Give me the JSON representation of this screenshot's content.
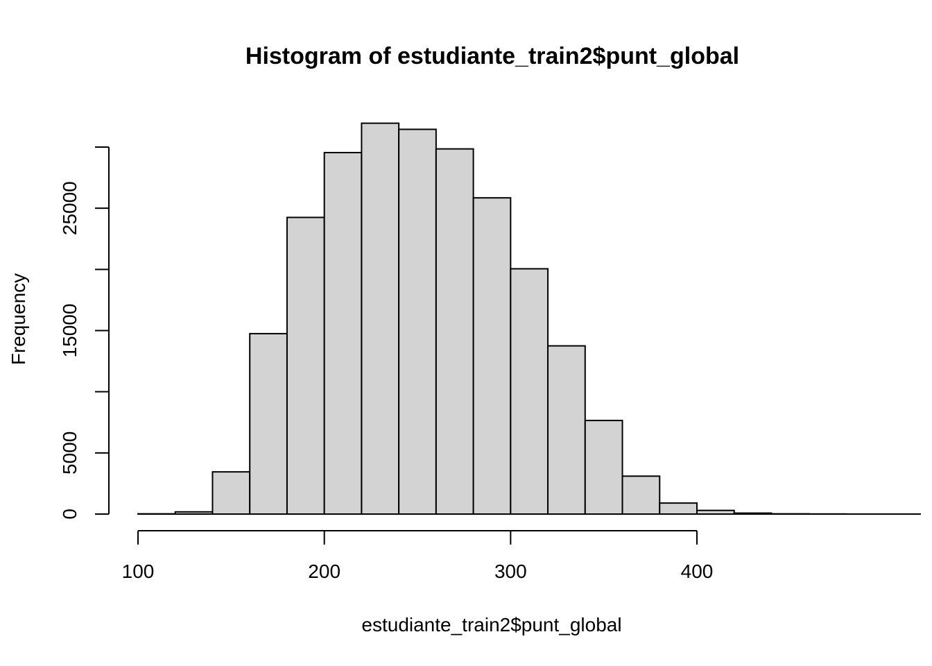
{
  "chart_data": {
    "type": "bar",
    "title": "Histogram of estudiante_train2$punt_global",
    "xlabel": "estudiante_train2$punt_global",
    "ylabel": "Frequency",
    "bin_width": 20,
    "bin_starts": [
      100,
      120,
      140,
      160,
      180,
      200,
      220,
      240,
      260,
      280,
      300,
      320,
      340,
      360,
      380,
      400,
      420,
      440,
      460
    ],
    "values": [
      20,
      180,
      3450,
      14750,
      24250,
      29550,
      31950,
      31450,
      29850,
      25850,
      20050,
      13750,
      7650,
      3100,
      900,
      300,
      80,
      20,
      10
    ],
    "xlim": [
      100,
      480
    ],
    "ylim": [
      0,
      32500
    ],
    "x_ticks": [
      100,
      200,
      300,
      400
    ],
    "x_tick_labels": [
      "100",
      "200",
      "300",
      "400"
    ],
    "y_ticks": [
      0,
      5000,
      10000,
      15000,
      20000,
      25000,
      30000
    ],
    "y_tick_labels": [
      "0",
      "5000",
      "",
      "15000",
      "",
      "25000",
      ""
    ],
    "grid": false,
    "legend": "none"
  }
}
